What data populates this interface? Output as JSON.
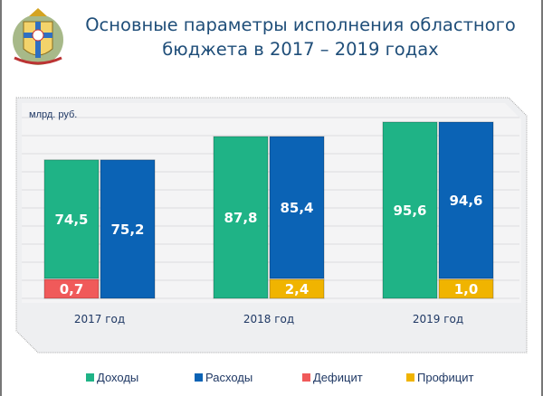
{
  "title": "Основные параметры исполнения областного бюджета в 2017 – 2019 годах",
  "chart_data": {
    "type": "bar",
    "stacked": true,
    "unit_label": "млрд. руб.",
    "categories": [
      "2017 год",
      "2018 год",
      "2019 год"
    ],
    "series": [
      {
        "name": "Доходы",
        "stack": "left",
        "color": "#1fb386",
        "values": [
          74.5,
          87.8,
          95.6
        ],
        "labels": [
          "74,5",
          "87,8",
          "95,6"
        ]
      },
      {
        "name": "Дефицит",
        "stack": "left",
        "color": "#f05a5a",
        "values": [
          0.7,
          0,
          0
        ],
        "labels": [
          "0,7",
          "",
          ""
        ]
      },
      {
        "name": "Расходы",
        "stack": "right",
        "color": "#0b63b5",
        "values": [
          75.2,
          85.4,
          94.6
        ],
        "labels": [
          "75,2",
          "85,4",
          "94,6"
        ]
      },
      {
        "name": "Профицит",
        "stack": "right",
        "color": "#f0b400",
        "values": [
          0,
          2.4,
          1.0
        ],
        "labels": [
          "",
          "2,4",
          "1,0"
        ]
      }
    ],
    "legend": [
      "Доходы",
      "Расходы",
      "Дефицит",
      "Профицит"
    ],
    "legend_position": "bottom",
    "grid": true
  }
}
